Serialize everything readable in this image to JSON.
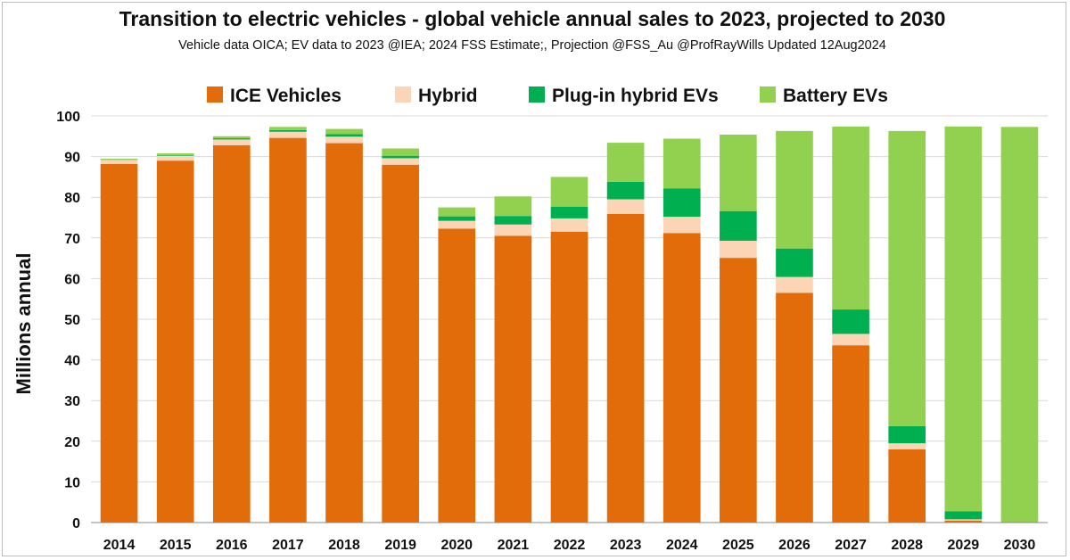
{
  "chart_data": {
    "type": "bar",
    "stacked": true,
    "title": "Transition to electric vehicles - global vehicle annual sales to 2023, projected to 2030",
    "subtitle": "Vehicle data OICA; EV data to 2023 @IEA;  2024 FSS Estimate;,  Projection @FSS_Au @ProfRayWills  Updated 12Aug2024",
    "xlabel": "",
    "ylabel": "Millions annual",
    "ylim": [
      0,
      100
    ],
    "yticks": [
      0,
      10,
      20,
      30,
      40,
      50,
      60,
      70,
      80,
      90,
      100
    ],
    "grid": true,
    "legend_position": "top",
    "categories": [
      "2014",
      "2015",
      "2016",
      "2017",
      "2018",
      "2019",
      "2020",
      "2021",
      "2022",
      "2023",
      "2024",
      "2025",
      "2026",
      "2027",
      "2028",
      "2029",
      "2030"
    ],
    "series": [
      {
        "name": "ICE Vehicles",
        "color": "#E36C0A",
        "values": [
          88.2,
          89.0,
          92.8,
          94.6,
          93.3,
          88.0,
          72.3,
          70.5,
          71.5,
          75.9,
          71.2,
          65.1,
          56.5,
          43.6,
          18.0,
          0.5,
          0
        ]
      },
      {
        "name": "Hybrid",
        "color": "#FBD5B5",
        "values": [
          1.0,
          1.2,
          1.4,
          1.5,
          1.6,
          1.6,
          1.9,
          2.8,
          3.3,
          3.6,
          4.0,
          4.2,
          3.9,
          2.8,
          1.5,
          0.3,
          0
        ]
      },
      {
        "name": "Plug-in hybrid EVs",
        "color": "#00B050",
        "values": [
          0.1,
          0.2,
          0.3,
          0.4,
          0.6,
          0.6,
          1.1,
          2.1,
          2.9,
          4.3,
          7.0,
          7.3,
          7.0,
          6.0,
          4.2,
          2.0,
          0
        ]
      },
      {
        "name": "Battery EVs",
        "color": "#92D050",
        "values": [
          0.2,
          0.4,
          0.5,
          0.8,
          1.3,
          1.8,
          2.2,
          4.8,
          7.3,
          9.6,
          12.2,
          18.8,
          28.9,
          45.0,
          72.6,
          94.6,
          97.3
        ]
      }
    ]
  }
}
